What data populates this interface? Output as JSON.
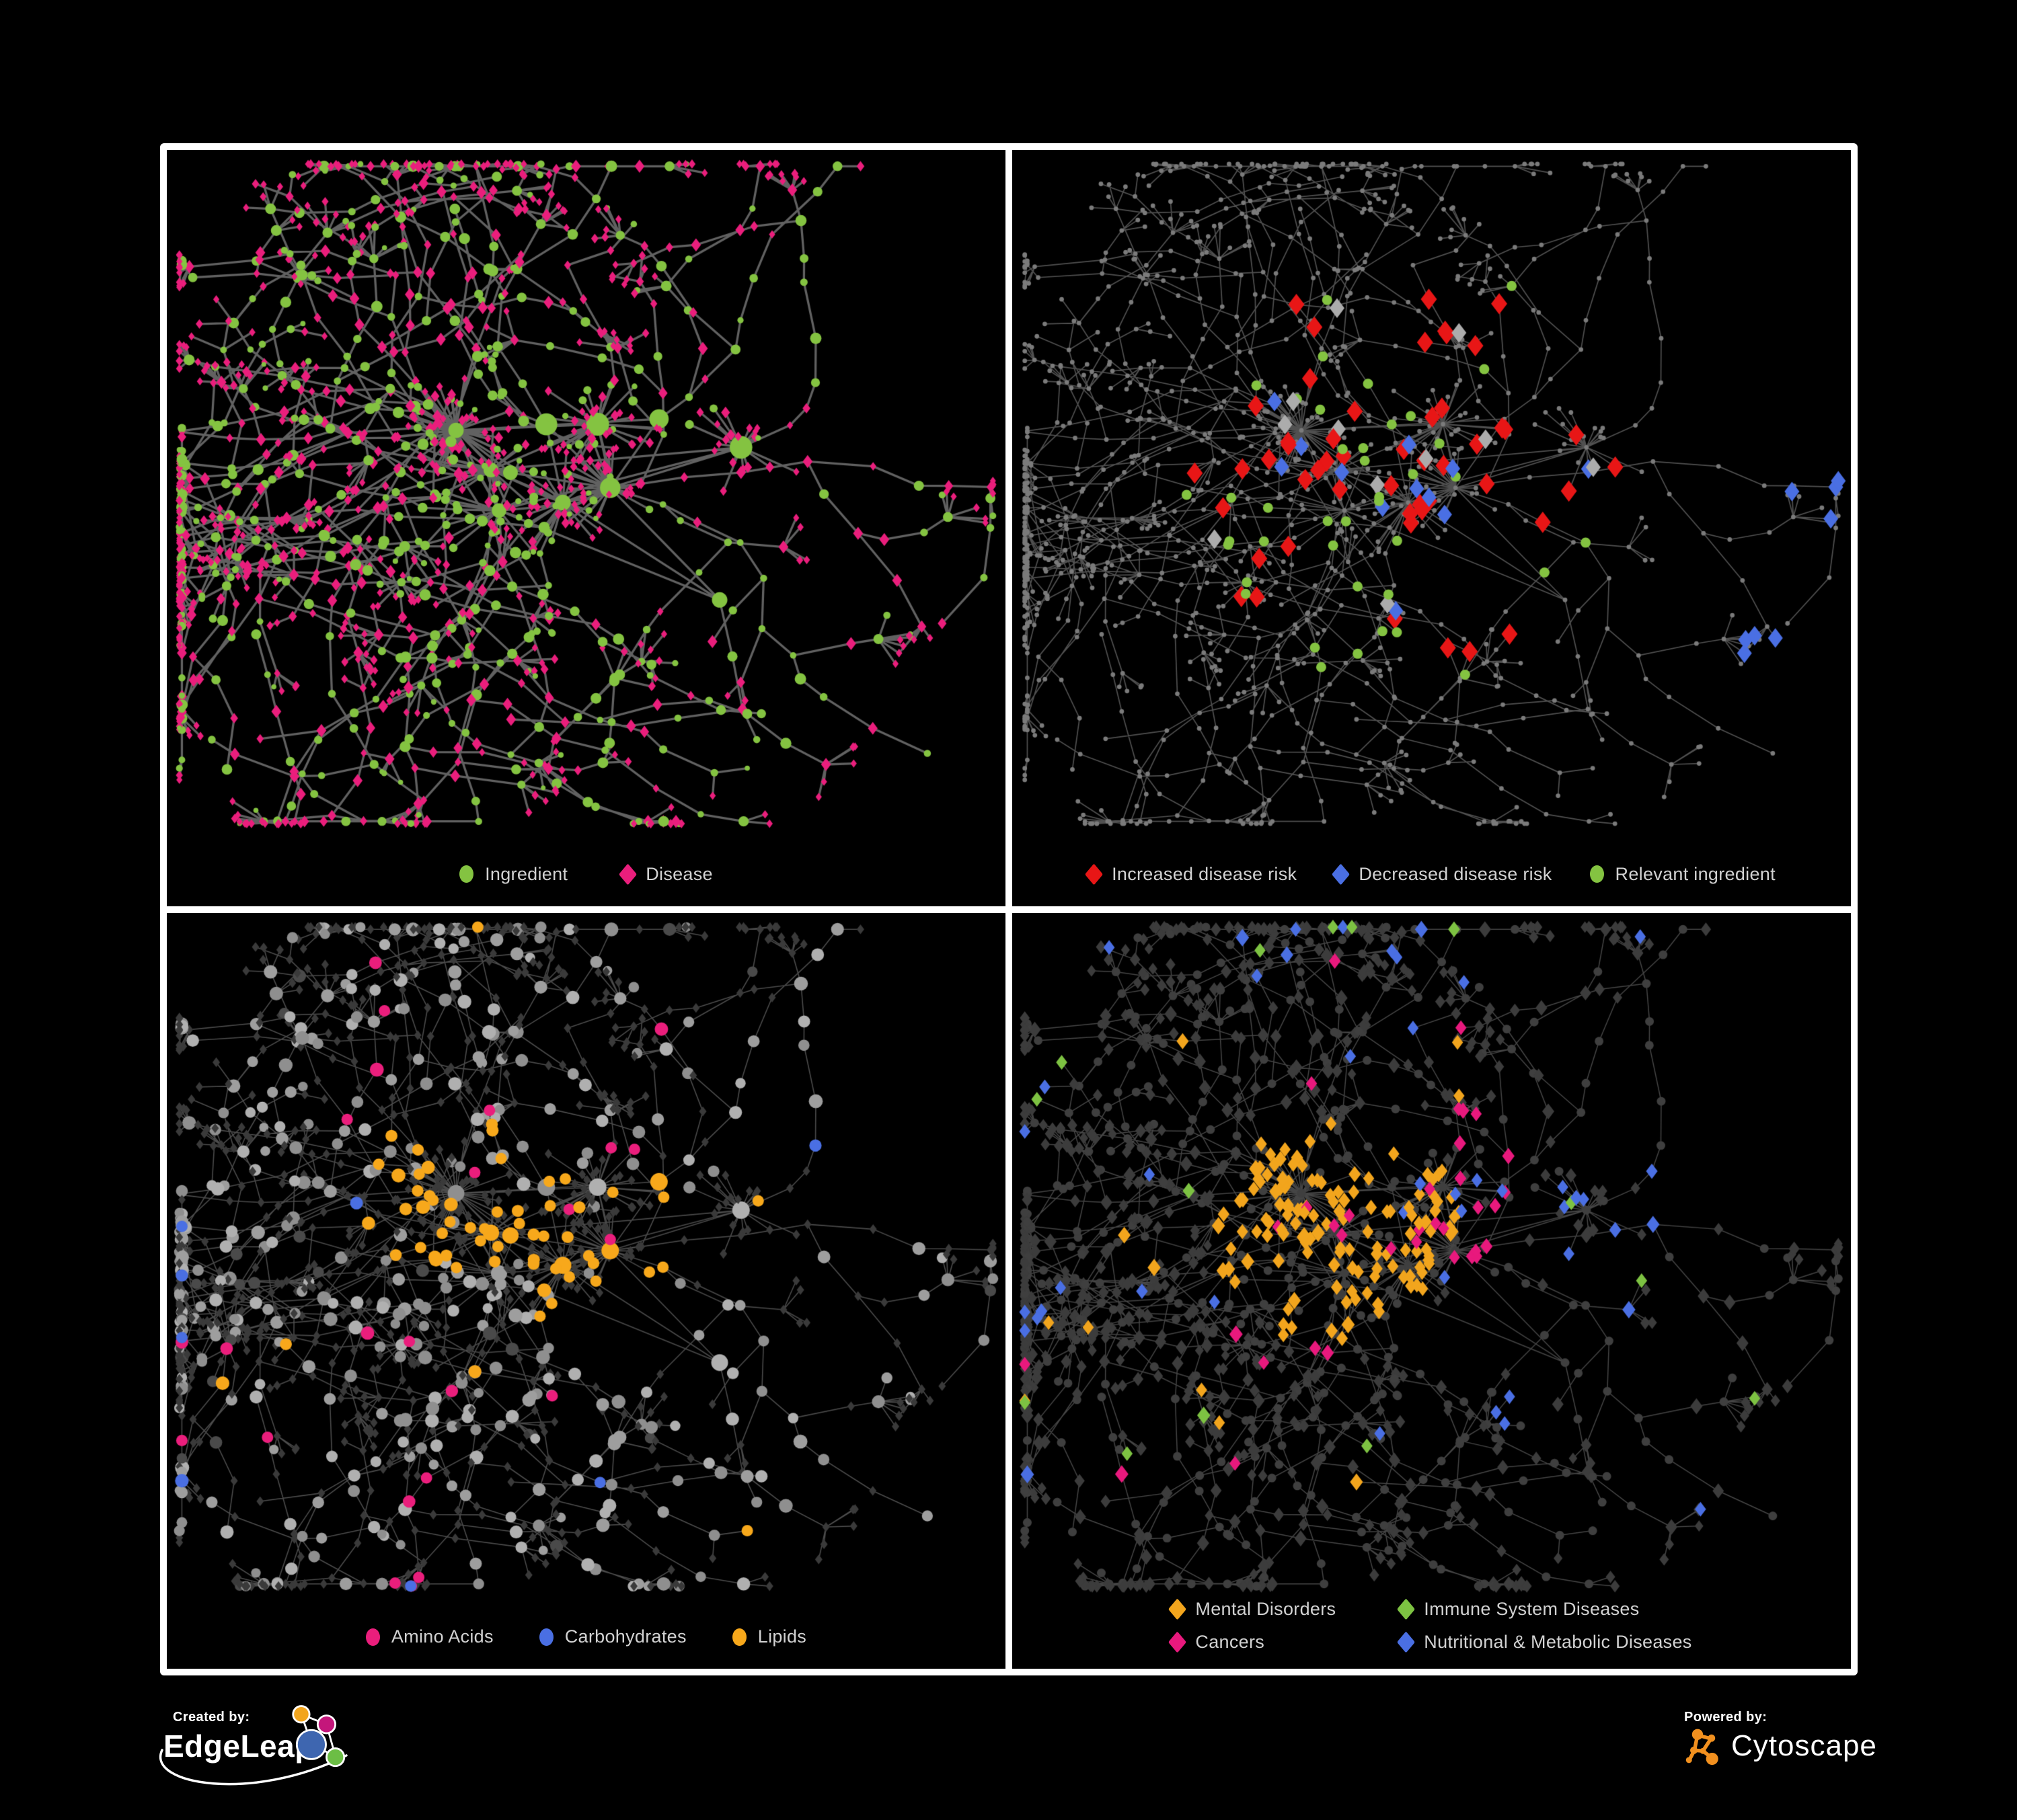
{
  "figure": {
    "background": "#000000",
    "frame_color": "#FFFFFF"
  },
  "panels": [
    {
      "name": "ingredient-disease",
      "legend": [
        {
          "label": "Ingredient",
          "shape": "circle",
          "color": "#84C341"
        },
        {
          "label": "Disease",
          "shape": "diamond",
          "color": "#EA1E7C"
        }
      ]
    },
    {
      "name": "disease-risk",
      "legend": [
        {
          "label": "Increased disease risk",
          "shape": "diamond",
          "color": "#E81616"
        },
        {
          "label": "Decreased disease risk",
          "shape": "diamond",
          "color": "#4A6FE3"
        },
        {
          "label": "Relevant ingredient",
          "shape": "circle",
          "color": "#84C341"
        }
      ]
    },
    {
      "name": "nutrient-classes",
      "legend": [
        {
          "label": "Amino Acids",
          "shape": "circle",
          "color": "#EA1E7C"
        },
        {
          "label": "Carbohydrates",
          "shape": "circle",
          "color": "#4A6FE3"
        },
        {
          "label": "Lipids",
          "shape": "circle",
          "color": "#F7A81B"
        }
      ]
    },
    {
      "name": "disease-classes",
      "legend": [
        {
          "label": "Mental Disorders",
          "shape": "diamond",
          "color": "#F2A51D"
        },
        {
          "label": "Immune System Diseases",
          "shape": "diamond",
          "color": "#7DC242"
        },
        {
          "label": "Cancers",
          "shape": "diamond",
          "color": "#E8197D"
        },
        {
          "label": "Nutritional & Metabolic Diseases",
          "shape": "diamond",
          "color": "#4A6FE3"
        }
      ]
    }
  ],
  "footer": {
    "created_by_label": "Created by:",
    "created_by_brand": "EdgeLeap",
    "powered_by_label": "Powered by:",
    "powered_by_brand": "Cytoscape",
    "edgeleap_node_colors": [
      "#F2A51D",
      "#C4167B",
      "#3E66B0",
      "#6CBE45"
    ],
    "cytoscape_orange": "#F1901F"
  },
  "network": {
    "seed": 11,
    "gen": {
      "hubCount": 11,
      "coreBursts": 7,
      "armCount": 30,
      "branchP": 0.32,
      "crossLinks": 42
    },
    "panels": [
      {
        "mode": "typed",
        "edge": {
          "color": "#6C6C6C",
          "width": 3.3,
          "alpha": 0.9
        },
        "ingredient": "#84C341",
        "disease": "#EA1E7C"
      },
      {
        "mode": "highlight",
        "edge": {
          "color": "#5E5E5E",
          "width": 1.7,
          "alpha": 0.85
        },
        "base": {
          "color": "#7B7B7B",
          "r": 3.4
        },
        "rules": [
          {
            "type": "d",
            "kind": "diamond",
            "color": "#E81616",
            "size": 13,
            "p": 0.17,
            "central": 260
          },
          {
            "type": "d",
            "kind": "diamond",
            "color": "#4A6FE3",
            "size": 12,
            "p": 0.5,
            "xmin": 860
          },
          {
            "type": "d",
            "kind": "diamond",
            "color": "#4A6FE3",
            "size": 12,
            "p": 0.05,
            "central": 250
          },
          {
            "type": "d",
            "kind": "diamond",
            "color": "#ACACAC",
            "size": 12,
            "p": 0.045,
            "central": 260
          },
          {
            "type": "i",
            "kind": "circle",
            "color": "#84C341",
            "size": 7.5,
            "p": 0.2,
            "central": 280
          }
        ]
      },
      {
        "mode": "classes",
        "focus": "i",
        "edge": {
          "color": "#A6A6A6",
          "width": 1.6,
          "alpha": 0.45
        },
        "dimDiamond": {
          "color": "#3A3A3A",
          "half": 6
        },
        "baseCircle": {
          "colors": [
            "#9E9E9E",
            "#8F8F8F",
            "#B0B0B0"
          ],
          "darkColor": "#4A4A4A",
          "darkP": 0.06
        },
        "classes": [
          {
            "color": "#F7A81B",
            "hubs": [
              0,
              4
            ],
            "radius": 115,
            "p": 0.62,
            "global": 0.02
          },
          {
            "color": "#4A6FE3",
            "hubs": [
              0
            ],
            "radius": 58,
            "p": 0.33,
            "global": 0.012
          },
          {
            "color": "#EA1E7C",
            "hubs": [],
            "radius": 0,
            "p": 0,
            "global": 0.06
          }
        ]
      },
      {
        "mode": "classes",
        "focus": "d",
        "edge": {
          "color": "#8A8A8A",
          "width": 1.5,
          "alpha": 0.5
        },
        "dimCircle": {
          "color": "#3F3F3F",
          "r": 6.5
        },
        "dimDiamond": {
          "color": "#3C3C3C"
        },
        "classes": [
          {
            "color": "#F2A51D",
            "hubs": [
              1
            ],
            "radius": 150,
            "p": 0.85,
            "global": 0.012
          },
          {
            "color": "#E8197D",
            "hubs": [
              2,
              6
            ],
            "radius": 110,
            "p": 0.6,
            "global": 0.015
          },
          {
            "color": "#4A6FE3",
            "hubs": [
              3,
              5,
              8
            ],
            "radius": 110,
            "p": 0.5,
            "global": 0.035
          },
          {
            "color": "#7DC242",
            "hubs": [],
            "radius": 0,
            "p": 0,
            "global": 0.015
          }
        ]
      }
    ]
  }
}
